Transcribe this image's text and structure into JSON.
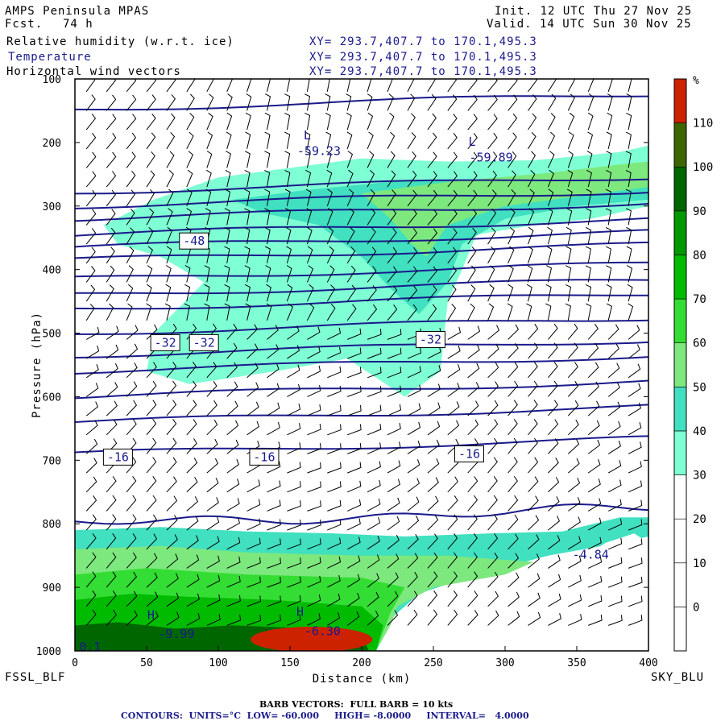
{
  "header": {
    "model": "AMPS Peninsula MPAS",
    "fcst_label": "Fcst.",
    "fcst_value": "74 h",
    "init": "Init. 12 UTC Thu 27 Nov 25",
    "valid": "Valid. 14 UTC Sun 30 Nov 25",
    "fields": [
      {
        "name": "Relative humidity (w.r.t. ice)",
        "xy": "XY= 293.7,407.7 to 170.1,495.3"
      },
      {
        "name": "Temperature",
        "xy": "XY= 293.7,407.7 to 170.1,495.3"
      },
      {
        "name": "Horizontal wind vectors",
        "xy": "XY= 293.7,407.7 to 170.1,495.3"
      }
    ]
  },
  "endpoints": {
    "left": "FSSL_BLF",
    "right": "SKY_BLU"
  },
  "footer": {
    "barb": "BARB VECTORS:  FULL BARB = 10 kts",
    "contours": "CONTOURS:  UNITS=°C  LOW= -60.000     HIGH= -8.0000     INTERVAL=   4.0000"
  },
  "colors": {
    "temperature_contour": "#1a1a8c",
    "rh_levels": [
      "#ffffff",
      "#ffffff",
      "#ffffff",
      "#ffffff",
      "#7fffd4",
      "#40e0c0",
      "#7de87d",
      "#33dd33",
      "#00bb00",
      "#009900",
      "#006600",
      "#446600",
      "#cc2200"
    ]
  },
  "chart_data": {
    "type": "cross-section",
    "title": "Relative humidity (w.r.t. ice), Temperature, Horizontal wind vectors",
    "xlabel": "Distance (km)",
    "ylabel": "Pressure (hPa)",
    "xlim": [
      0,
      400
    ],
    "ylim": [
      1000,
      100
    ],
    "x_ticks": [
      0,
      50,
      100,
      150,
      200,
      250,
      300,
      350,
      400
    ],
    "y_ticks": [
      100,
      200,
      300,
      400,
      500,
      600,
      700,
      800,
      900,
      1000
    ],
    "colorbar": {
      "unit": "%",
      "ticks": [
        0,
        10,
        20,
        30,
        40,
        50,
        60,
        70,
        80,
        90,
        100,
        110
      ],
      "min": -10,
      "max": 120
    },
    "temperature_labels": [
      {
        "text": "-48",
        "x": 83,
        "p": 355,
        "boxed": true
      },
      {
        "text": "-32",
        "x": 63,
        "p": 515,
        "boxed": true
      },
      {
        "text": "-32",
        "x": 90,
        "p": 515,
        "boxed": true
      },
      {
        "text": "-32",
        "x": 248,
        "p": 510,
        "boxed": true
      },
      {
        "text": "-16",
        "x": 30,
        "p": 695,
        "boxed": true
      },
      {
        "text": "-16",
        "x": 132,
        "p": 695,
        "boxed": true
      },
      {
        "text": "-16",
        "x": 275,
        "p": 690,
        "boxed": true
      },
      {
        "text": "-59.23",
        "x": 155,
        "p": 220,
        "boxed": false
      },
      {
        "text": "-59.89",
        "x": 275,
        "p": 230,
        "boxed": false
      },
      {
        "text": "-6.30",
        "x": 160,
        "p": 975,
        "boxed": false
      },
      {
        "text": "-9.99",
        "x": 58,
        "p": 980,
        "boxed": false
      },
      {
        "text": "-4.84",
        "x": 347,
        "p": 855,
        "boxed": false
      },
      {
        "text": "0.1",
        "x": 3,
        "p": 1000,
        "boxed": false
      }
    ],
    "extrema_markers": [
      {
        "text": "L",
        "x": 162,
        "p": 195
      },
      {
        "text": "L",
        "x": 277,
        "p": 205
      },
      {
        "text": "H",
        "x": 157,
        "p": 945
      },
      {
        "text": "H",
        "x": 53,
        "p": 950
      }
    ],
    "isotherms_p_at_x0": [
      148,
      278,
      300,
      320,
      345,
      365,
      385,
      415,
      440,
      462,
      500,
      535,
      560,
      600,
      640,
      690,
      800
    ]
  }
}
